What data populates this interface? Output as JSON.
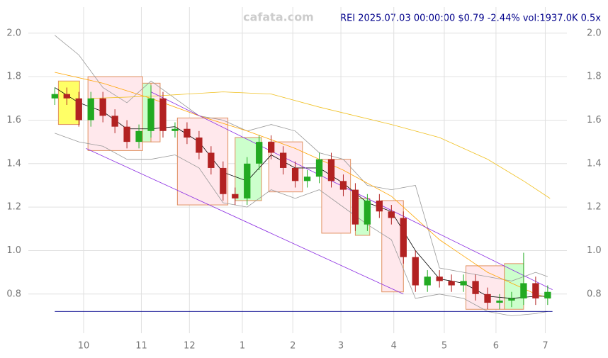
{
  "chart_data": {
    "type": "candlestick",
    "watermark": "cafata.com",
    "title": "REI 2025.07.03 00:00:00 $0.79 -2.44% vol:1937.0K 0.5x",
    "xlim": [
      -11,
      213
    ],
    "ylim": [
      0.62,
      2.12
    ],
    "xticks": [
      {
        "value": 12,
        "label": "10"
      },
      {
        "value": 36,
        "label": "11"
      },
      {
        "value": 56,
        "label": "12"
      },
      {
        "value": 78,
        "label": "1"
      },
      {
        "value": 99,
        "label": "2"
      },
      {
        "value": 119,
        "label": "3"
      },
      {
        "value": 141,
        "label": "4"
      },
      {
        "value": 162,
        "label": "5"
      },
      {
        "value": 183.5,
        "label": "6"
      },
      {
        "value": 204,
        "label": "7"
      }
    ],
    "yticks": [
      0.8,
      {
        "value": 1.0,
        "label": "1.0"
      },
      1.2,
      1.4,
      1.6,
      1.8,
      {
        "value": 2.0,
        "label": "2.0"
      }
    ],
    "grid": true,
    "up_color": "#22aa22",
    "down_color": "#b22222",
    "x": [
      0,
      5,
      10,
      15,
      20,
      25,
      30,
      35,
      40,
      45,
      50,
      55,
      60,
      65,
      70,
      75,
      80,
      85,
      90,
      95,
      100,
      105,
      110,
      115,
      120,
      125,
      130,
      135,
      140,
      145,
      150,
      155,
      160,
      165,
      170,
      175,
      180,
      185,
      190,
      195,
      200,
      205
    ],
    "open": [
      1.7,
      1.72,
      1.7,
      1.6,
      1.7,
      1.62,
      1.57,
      1.5,
      1.55,
      1.7,
      1.55,
      1.56,
      1.52,
      1.45,
      1.38,
      1.26,
      1.24,
      1.4,
      1.5,
      1.45,
      1.38,
      1.32,
      1.34,
      1.42,
      1.32,
      1.28,
      1.12,
      1.23,
      1.18,
      1.15,
      0.97,
      0.84,
      0.88,
      0.86,
      0.84,
      0.86,
      0.8,
      0.76,
      0.77,
      0.78,
      0.85,
      0.78
    ],
    "high": [
      1.75,
      1.75,
      1.73,
      1.73,
      1.73,
      1.65,
      1.6,
      1.58,
      1.76,
      1.73,
      1.59,
      1.59,
      1.55,
      1.48,
      1.41,
      1.29,
      1.43,
      1.53,
      1.53,
      1.48,
      1.41,
      1.37,
      1.45,
      1.45,
      1.35,
      1.31,
      1.26,
      1.26,
      1.21,
      1.18,
      1.0,
      0.91,
      0.91,
      0.89,
      0.89,
      0.89,
      0.83,
      0.8,
      0.81,
      0.99,
      0.88,
      0.84
    ],
    "low": [
      1.67,
      1.67,
      1.57,
      1.57,
      1.59,
      1.54,
      1.47,
      1.47,
      1.52,
      1.52,
      1.52,
      1.49,
      1.42,
      1.35,
      1.23,
      1.21,
      1.21,
      1.37,
      1.42,
      1.35,
      1.29,
      1.29,
      1.31,
      1.29,
      1.25,
      1.09,
      1.09,
      1.15,
      1.12,
      0.94,
      0.81,
      0.81,
      0.83,
      0.81,
      0.81,
      0.77,
      0.73,
      0.73,
      0.74,
      0.75,
      0.75,
      0.75
    ],
    "close": [
      1.72,
      1.7,
      1.6,
      1.7,
      1.62,
      1.57,
      1.5,
      1.55,
      1.7,
      1.55,
      1.56,
      1.52,
      1.45,
      1.38,
      1.26,
      1.24,
      1.4,
      1.5,
      1.45,
      1.38,
      1.32,
      1.34,
      1.42,
      1.32,
      1.28,
      1.12,
      1.23,
      1.18,
      1.15,
      0.97,
      0.84,
      0.88,
      0.86,
      0.84,
      0.86,
      0.8,
      0.76,
      0.77,
      0.78,
      0.85,
      0.78,
      0.81
    ],
    "boxes": [
      {
        "x": [
          1.5,
          10.3
        ],
        "range": [
          1.58,
          1.78
        ],
        "color": "#ffff66"
      },
      {
        "x": [
          13.8,
          36.5
        ],
        "range": [
          1.46,
          1.8
        ],
        "color": "#ffe8ec"
      },
      {
        "x": [
          36.5,
          40
        ],
        "range": [
          1.5,
          1.77
        ],
        "color": "#ccffcc"
      },
      {
        "x": [
          40,
          43.8
        ],
        "range": [
          1.5,
          1.77
        ],
        "color": "#ffe8ec"
      },
      {
        "x": [
          51,
          72
        ],
        "range": [
          1.21,
          1.61
        ],
        "color": "#ffe8ec"
      },
      {
        "x": [
          75,
          86
        ],
        "range": [
          1.23,
          1.52
        ],
        "color": "#ccffcc"
      },
      {
        "x": [
          89,
          103
        ],
        "range": [
          1.27,
          1.5
        ],
        "color": "#ffe8ec"
      },
      {
        "x": [
          111,
          123
        ],
        "range": [
          1.08,
          1.42
        ],
        "color": "#ffe8ec"
      },
      {
        "x": [
          125,
          131
        ],
        "range": [
          1.07,
          1.24
        ],
        "color": "#ccffcc"
      },
      {
        "x": [
          136,
          145
        ],
        "range": [
          0.81,
          1.23
        ],
        "color": "#ffe8ec"
      },
      {
        "x": [
          171,
          187
        ],
        "range": [
          0.73,
          0.93
        ],
        "color": "#ffe8ec"
      },
      {
        "x": [
          187,
          195
        ],
        "range": [
          0.73,
          0.94
        ],
        "color": "#ccffcc"
      }
    ],
    "lines": [
      {
        "color": "#999999",
        "x": [
          0,
          10,
          20,
          30,
          40,
          50,
          60,
          70,
          80,
          90,
          100,
          110,
          120,
          130,
          140,
          150,
          160,
          170,
          180,
          190,
          200,
          205
        ],
        "values": [
          1.99,
          1.9,
          1.75,
          1.68,
          1.78,
          1.7,
          1.62,
          1.6,
          1.55,
          1.58,
          1.55,
          1.45,
          1.42,
          1.3,
          1.28,
          1.3,
          0.92,
          0.9,
          0.88,
          0.86,
          0.9,
          0.88
        ]
      },
      {
        "color": "#999999",
        "x": [
          0,
          10,
          20,
          30,
          40,
          50,
          60,
          70,
          80,
          90,
          100,
          110,
          120,
          130,
          140,
          150,
          160,
          170,
          180,
          190,
          200,
          205
        ],
        "values": [
          1.54,
          1.5,
          1.48,
          1.42,
          1.42,
          1.44,
          1.38,
          1.22,
          1.2,
          1.28,
          1.24,
          1.28,
          1.2,
          1.12,
          1.05,
          0.78,
          0.8,
          0.78,
          0.72,
          0.7,
          0.71,
          0.72
        ]
      },
      {
        "color": "#ffa500",
        "x": [
          0,
          20,
          40,
          60,
          80,
          100,
          120,
          140,
          160,
          180,
          200,
          206
        ],
        "values": [
          1.82,
          1.77,
          1.7,
          1.62,
          1.55,
          1.47,
          1.37,
          1.25,
          1.05,
          0.9,
          0.8,
          0.78
        ]
      },
      {
        "color": "#f0c020",
        "x": [
          15,
          40,
          70,
          90,
          110,
          140,
          160,
          180,
          195,
          206
        ],
        "values": [
          1.7,
          1.71,
          1.73,
          1.72,
          1.66,
          1.58,
          1.52,
          1.42,
          1.32,
          1.24
        ]
      },
      {
        "color": "#000000",
        "x": [
          0,
          10,
          20,
          30,
          40,
          50,
          60,
          70,
          80,
          90,
          100,
          110,
          120,
          130,
          140,
          150,
          160,
          170,
          180,
          190,
          200,
          205
        ],
        "values": [
          1.75,
          1.68,
          1.64,
          1.56,
          1.56,
          1.57,
          1.5,
          1.36,
          1.32,
          1.44,
          1.38,
          1.38,
          1.31,
          1.22,
          1.18,
          1.0,
          0.87,
          0.85,
          0.79,
          0.78,
          0.79,
          0.79
        ]
      },
      {
        "color": "#8a2be2",
        "x": [
          40,
          207
        ],
        "values": [
          1.73,
          0.82
        ]
      },
      {
        "color": "#8a2be2",
        "x": [
          13,
          145
        ],
        "values": [
          1.47,
          0.8
        ]
      },
      {
        "color": "#00008b",
        "x": [
          0,
          207
        ],
        "values": [
          0.72,
          0.72
        ]
      }
    ]
  }
}
